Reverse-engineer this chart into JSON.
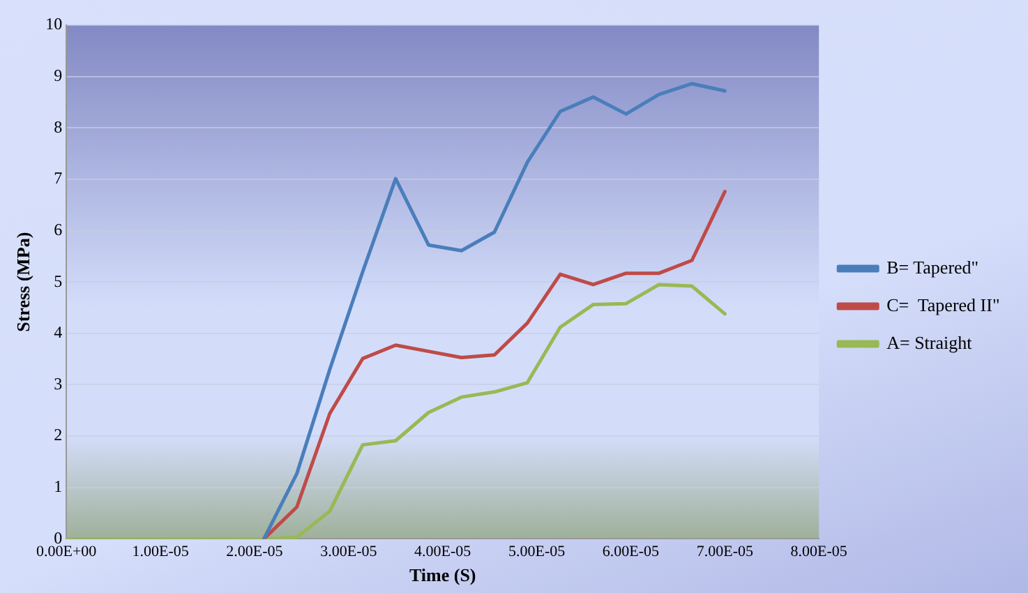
{
  "chart_data": {
    "type": "line",
    "xlabel": "Time (S)",
    "ylabel": "Stress (MPa)",
    "x": [
      0,
      3.5e-06,
      7e-06,
      1.05e-05,
      1.4e-05,
      1.75e-05,
      2.1e-05,
      2.45e-05,
      2.8e-05,
      3.15e-05,
      3.5e-05,
      3.85e-05,
      4.2e-05,
      4.55e-05,
      4.9e-05,
      5.25e-05,
      5.6e-05,
      5.95e-05,
      6.3e-05,
      6.65e-05,
      7e-05
    ],
    "series": [
      {
        "name": "B= Tapered\"",
        "color": "#4a7ebb",
        "values": [
          null,
          null,
          null,
          null,
          null,
          null,
          0,
          1.27,
          3.3,
          5.2,
          7.01,
          5.72,
          5.61,
          5.97,
          7.33,
          8.32,
          8.6,
          8.27,
          8.65,
          8.86,
          8.72
        ]
      },
      {
        "name": "C=  Tapered II\"",
        "color": "#be4b48",
        "values": [
          null,
          null,
          null,
          null,
          null,
          null,
          0,
          0.62,
          2.44,
          3.51,
          3.77,
          3.65,
          3.53,
          3.58,
          4.2,
          5.15,
          4.95,
          5.17,
          5.17,
          5.42,
          6.76
        ]
      },
      {
        "name": "A= Straight",
        "color": "#98b954",
        "values": [
          0,
          0,
          0,
          0,
          0,
          0,
          0,
          0.03,
          0.54,
          1.83,
          1.91,
          2.46,
          2.76,
          2.86,
          3.04,
          4.12,
          4.56,
          4.58,
          4.95,
          4.92,
          4.38
        ]
      }
    ],
    "xlim": [
      0,
      8e-05
    ],
    "xticks": [
      {
        "value": 0,
        "label": "0.00E+00"
      },
      {
        "value": 1e-05,
        "label": "1.00E-05"
      },
      {
        "value": 2e-05,
        "label": "2.00E-05"
      },
      {
        "value": 3e-05,
        "label": "3.00E-05"
      },
      {
        "value": 4e-05,
        "label": "4.00E-05"
      },
      {
        "value": 5e-05,
        "label": "5.00E-05"
      },
      {
        "value": 6e-05,
        "label": "6.00E-05"
      },
      {
        "value": 7e-05,
        "label": "7.00E-05"
      },
      {
        "value": 8e-05,
        "label": "8.00E-05"
      }
    ],
    "ylim": [
      0,
      10
    ],
    "yticks": [
      0,
      1,
      2,
      3,
      4,
      5,
      6,
      7,
      8,
      9,
      10
    ],
    "grid": "y",
    "legend": "right",
    "marker": "none",
    "line_style": "solid"
  }
}
